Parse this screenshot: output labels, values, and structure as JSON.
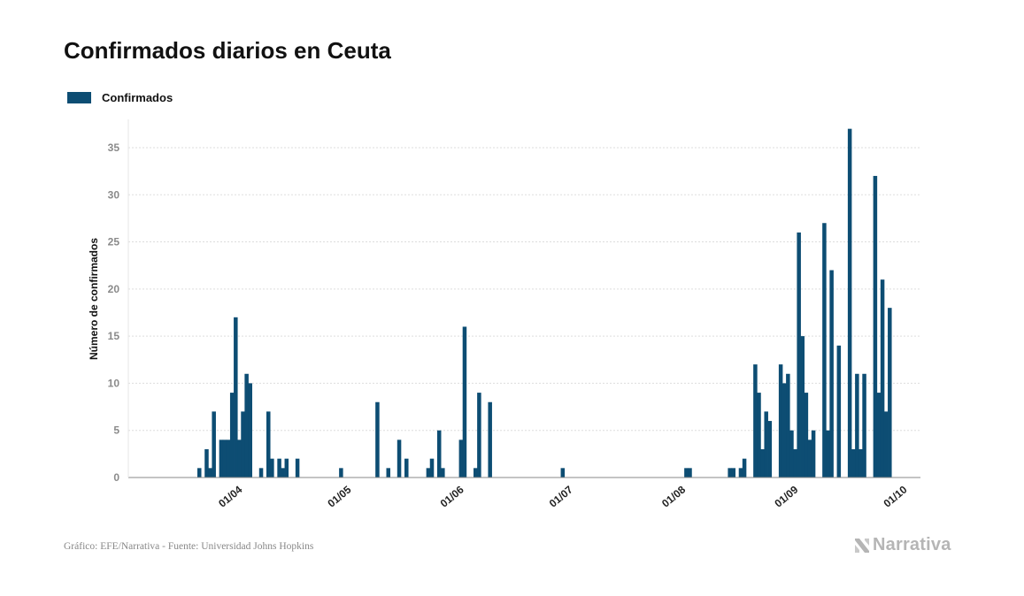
{
  "title": "Confirmados diarios en Ceuta",
  "colors": {
    "bar": "#0d4d73",
    "grid": "#dddddd",
    "axis": "#8a8a8a",
    "logo": "#b5b5b5"
  },
  "source": "Gráfico: EFE/Narrativa - Fuente: Universidad Johns Hopkins",
  "logo": {
    "text": "Narrativa",
    "icon": "narrativa-n-icon"
  },
  "chart_data": {
    "type": "bar",
    "title": "Confirmados diarios en Ceuta",
    "xlabel": "",
    "ylabel": "Número de confirmados",
    "ylim": [
      0,
      38
    ],
    "yticks": [
      0,
      5,
      10,
      15,
      20,
      25,
      30,
      35
    ],
    "grid": true,
    "legend": {
      "position": "top-left",
      "entries": [
        "Confirmados"
      ]
    },
    "x_start": "2020-03-01",
    "x_end": "2020-10-04",
    "xticks": [
      {
        "date": "2020-04-01",
        "label": "01/04"
      },
      {
        "date": "2020-05-01",
        "label": "01/05"
      },
      {
        "date": "2020-06-01",
        "label": "01/06"
      },
      {
        "date": "2020-07-01",
        "label": "01/07"
      },
      {
        "date": "2020-08-01",
        "label": "01/08"
      },
      {
        "date": "2020-09-01",
        "label": "01/09"
      },
      {
        "date": "2020-10-01",
        "label": "01/10"
      }
    ],
    "series": [
      {
        "name": "Confirmados",
        "color": "#0d4d73",
        "points": [
          [
            "2020-03-20",
            1
          ],
          [
            "2020-03-22",
            3
          ],
          [
            "2020-03-23",
            1
          ],
          [
            "2020-03-24",
            7
          ],
          [
            "2020-03-26",
            4
          ],
          [
            "2020-03-27",
            4
          ],
          [
            "2020-03-28",
            4
          ],
          [
            "2020-03-29",
            9
          ],
          [
            "2020-03-30",
            17
          ],
          [
            "2020-03-31",
            4
          ],
          [
            "2020-04-01",
            7
          ],
          [
            "2020-04-02",
            11
          ],
          [
            "2020-04-03",
            10
          ],
          [
            "2020-04-06",
            1
          ],
          [
            "2020-04-08",
            7
          ],
          [
            "2020-04-09",
            2
          ],
          [
            "2020-04-11",
            2
          ],
          [
            "2020-04-12",
            1
          ],
          [
            "2020-04-13",
            2
          ],
          [
            "2020-04-16",
            2
          ],
          [
            "2020-04-28",
            1
          ],
          [
            "2020-05-08",
            8
          ],
          [
            "2020-05-11",
            1
          ],
          [
            "2020-05-14",
            4
          ],
          [
            "2020-05-16",
            2
          ],
          [
            "2020-05-22",
            1
          ],
          [
            "2020-05-23",
            2
          ],
          [
            "2020-05-25",
            5
          ],
          [
            "2020-05-26",
            1
          ],
          [
            "2020-05-31",
            4
          ],
          [
            "2020-06-01",
            16
          ],
          [
            "2020-06-04",
            1
          ],
          [
            "2020-06-05",
            9
          ],
          [
            "2020-06-08",
            8
          ],
          [
            "2020-06-28",
            1
          ],
          [
            "2020-08-01",
            1
          ],
          [
            "2020-08-02",
            1
          ],
          [
            "2020-08-13",
            1
          ],
          [
            "2020-08-14",
            1
          ],
          [
            "2020-08-16",
            1
          ],
          [
            "2020-08-17",
            2
          ],
          [
            "2020-08-20",
            12
          ],
          [
            "2020-08-21",
            9
          ],
          [
            "2020-08-22",
            3
          ],
          [
            "2020-08-23",
            7
          ],
          [
            "2020-08-24",
            6
          ],
          [
            "2020-08-27",
            12
          ],
          [
            "2020-08-28",
            10
          ],
          [
            "2020-08-29",
            11
          ],
          [
            "2020-08-30",
            5
          ],
          [
            "2020-08-31",
            3
          ],
          [
            "2020-09-01",
            26
          ],
          [
            "2020-09-02",
            15
          ],
          [
            "2020-09-03",
            9
          ],
          [
            "2020-09-04",
            4
          ],
          [
            "2020-09-05",
            5
          ],
          [
            "2020-09-08",
            27
          ],
          [
            "2020-09-09",
            5
          ],
          [
            "2020-09-10",
            22
          ],
          [
            "2020-09-12",
            14
          ],
          [
            "2020-09-15",
            37
          ],
          [
            "2020-09-16",
            3
          ],
          [
            "2020-09-17",
            11
          ],
          [
            "2020-09-18",
            3
          ],
          [
            "2020-09-19",
            11
          ],
          [
            "2020-09-22",
            32
          ],
          [
            "2020-09-23",
            9
          ],
          [
            "2020-09-24",
            21
          ],
          [
            "2020-09-25",
            7
          ],
          [
            "2020-09-26",
            18
          ]
        ]
      }
    ]
  }
}
